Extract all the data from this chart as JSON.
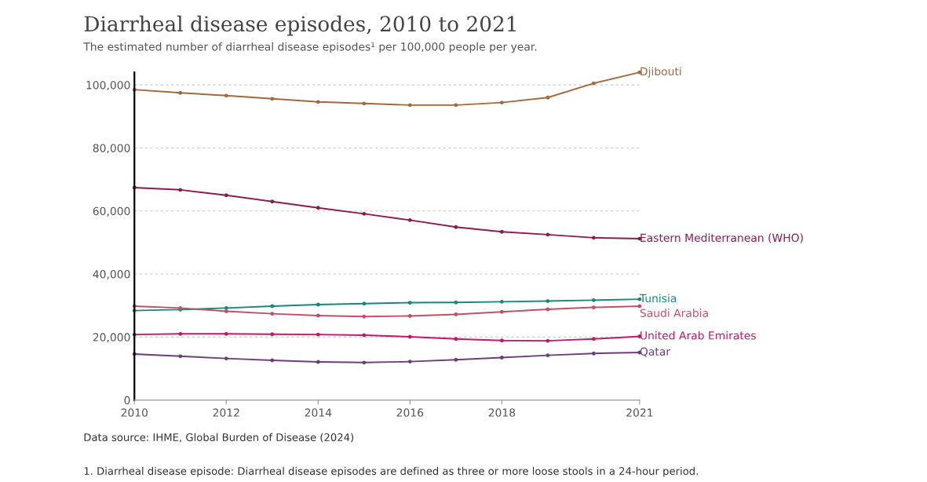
{
  "chart_data": {
    "type": "line",
    "title": "Diarrheal disease episodes, 2010 to 2021",
    "subtitle": "The estimated number of diarrheal disease episodes¹ per 100,000 people per year.",
    "x": [
      2010,
      2011,
      2012,
      2013,
      2014,
      2015,
      2016,
      2017,
      2018,
      2019,
      2020,
      2021
    ],
    "series": [
      {
        "name": "Djibouti",
        "color": "#a2693f",
        "values": [
          98500,
          97500,
          96600,
          95600,
          94600,
          94100,
          93600,
          93600,
          94400,
          96000,
          100500,
          104000
        ]
      },
      {
        "name": "Eastern Mediterranean (WHO)",
        "color": "#8c1c4e",
        "values": [
          67400,
          66700,
          65000,
          63000,
          61000,
          59100,
          57100,
          54900,
          53400,
          52500,
          51500,
          51200
        ]
      },
      {
        "name": "Tunisia",
        "color": "#17877e",
        "values": [
          28400,
          28700,
          29200,
          29800,
          30300,
          30600,
          30900,
          31000,
          31200,
          31400,
          31700,
          32000
        ]
      },
      {
        "name": "Saudi Arabia",
        "color": "#c15065",
        "values": [
          29800,
          29200,
          28200,
          27400,
          26800,
          26500,
          26700,
          27200,
          28000,
          28800,
          29400,
          29800
        ]
      },
      {
        "name": "United Arab Emirates",
        "color": "#c2186a",
        "values": [
          20800,
          21000,
          21000,
          20900,
          20800,
          20600,
          20100,
          19400,
          18900,
          18800,
          19400,
          20200
        ]
      },
      {
        "name": "Qatar",
        "color": "#6d3e7a",
        "values": [
          14600,
          13900,
          13200,
          12600,
          12100,
          11900,
          12200,
          12800,
          13500,
          14200,
          14800,
          15100
        ]
      }
    ],
    "xlim": [
      2010,
      2021
    ],
    "xticks": [
      2010,
      2012,
      2014,
      2016,
      2018,
      2021
    ],
    "ylim": [
      0,
      104000
    ],
    "yticks": [
      0,
      {
        "value": 20000,
        "label": "20,000"
      },
      {
        "value": 40000,
        "label": "40,000"
      },
      {
        "value": 60000,
        "label": "60,000"
      },
      {
        "value": 80000,
        "label": "80,000"
      },
      {
        "value": 100000,
        "label": "100,000"
      }
    ],
    "grid": "y",
    "marker": "circle",
    "legend": "right",
    "annotations": [
      "Data source: IHME, Global Burden of Disease (2024)",
      "1. Diarrheal disease episode: Diarrheal disease episodes are defined as three or more loose stools in a 24-hour period."
    ]
  }
}
